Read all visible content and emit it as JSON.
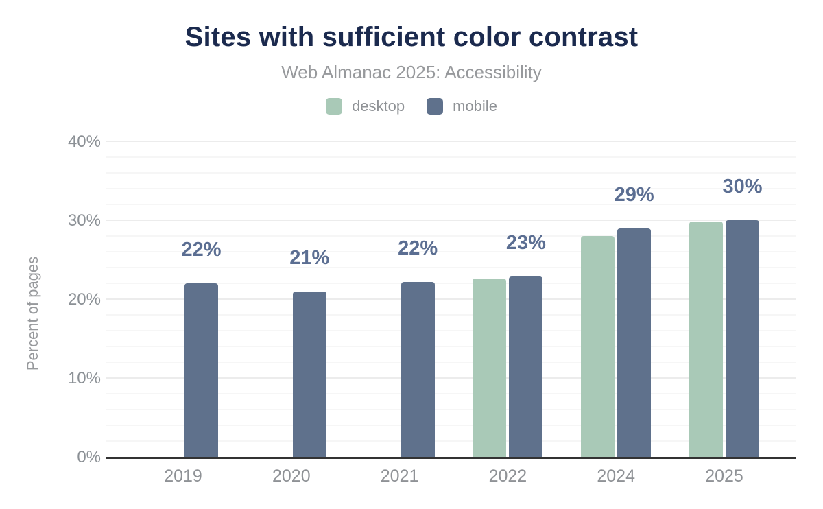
{
  "header": {
    "title": "Sites with sufficient color contrast",
    "subtitle": "Web Almanac 2025: Accessibility"
  },
  "legend": [
    {
      "label": "desktop",
      "color": "#a9c9b7"
    },
    {
      "label": "mobile",
      "color": "#5f718c"
    }
  ],
  "chart_data": {
    "type": "bar",
    "title": "Sites with sufficient color contrast",
    "subtitle": "Web Almanac 2025: Accessibility",
    "categories": [
      "2019",
      "2020",
      "2021",
      "2022",
      "2024",
      "2025"
    ],
    "series": [
      {
        "name": "desktop",
        "color": "#a9c9b7",
        "values": [
          null,
          null,
          null,
          22.6,
          28.0,
          29.8
        ]
      },
      {
        "name": "mobile",
        "color": "#5f718c",
        "values": [
          22.0,
          21.0,
          22.2,
          22.9,
          29.0,
          30.0
        ]
      }
    ],
    "data_labels": [
      "22%",
      "21%",
      "22%",
      "23%",
      "29%",
      "30%"
    ],
    "xlabel": "",
    "ylabel": "Percent of pages",
    "ylim": [
      0,
      40
    ],
    "y_ticks": [
      {
        "label": "0%",
        "value": 0
      },
      {
        "label": "10%",
        "value": 10
      },
      {
        "label": "20%",
        "value": 20
      },
      {
        "label": "30%",
        "value": 30
      },
      {
        "label": "40%",
        "value": 40
      }
    ],
    "grid": "horizontal; major every 10%, minor every 2%",
    "legend_position": "top",
    "missing_note": "2023 not present; desktop series has no bars for 2019-2021"
  }
}
